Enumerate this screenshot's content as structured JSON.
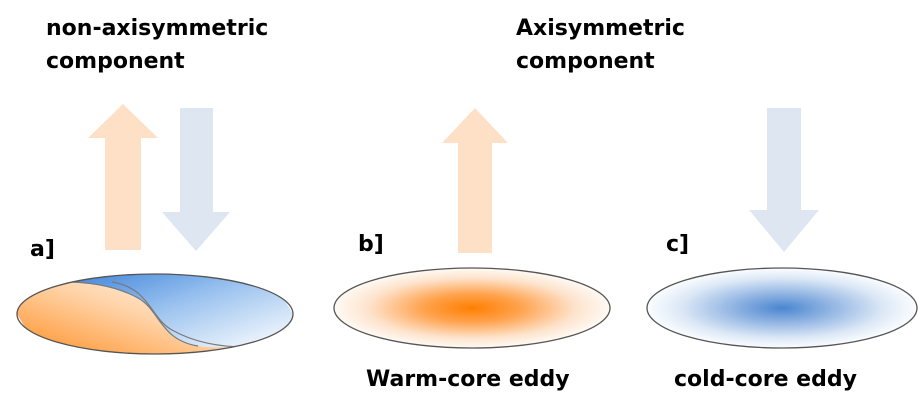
{
  "headings": {
    "left_line1": "non-axisymmetric",
    "left_line2": "component",
    "right_line1": "Axisymmetric",
    "right_line2": "component"
  },
  "panels": {
    "a": "a]",
    "b": "b]",
    "c": "c]"
  },
  "captions": {
    "warm": "Warm-core eddy",
    "cold": "cold-core eddy"
  },
  "colors": {
    "warm_arrow": "#fde0c6",
    "cold_arrow": "#dde6f1",
    "warm_core": "#ff8000",
    "cold_core": "#4a86d0",
    "outline": "#555555"
  }
}
